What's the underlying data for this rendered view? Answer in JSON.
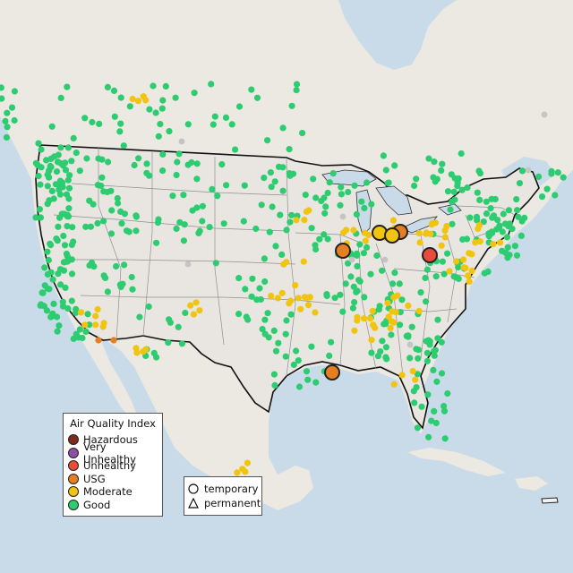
{
  "legend": {
    "title": "Air Quality Index",
    "categories": [
      {
        "label": "Hazardous",
        "color": "#7e2a1e"
      },
      {
        "label": "Very Unhealthy",
        "color": "#8e4fa5"
      },
      {
        "label": "Unhealthy",
        "color": "#e74c3c"
      },
      {
        "label": "USG",
        "color": "#e67e22"
      },
      {
        "label": "Moderate",
        "color": "#f1c40f"
      },
      {
        "label": "Good",
        "color": "#2ecc71"
      }
    ]
  },
  "type_legend": {
    "items": [
      {
        "label": "temporary",
        "icon": "circle-icon"
      },
      {
        "label": "permanent",
        "icon": "triangle-icon"
      }
    ]
  },
  "colors": {
    "water": "#c9dbe9",
    "land": "#ece8e2",
    "us_land": "#e9e6e1",
    "mexico_land": "#e4e1da",
    "no_data_marker": "#c4c4c4"
  }
}
